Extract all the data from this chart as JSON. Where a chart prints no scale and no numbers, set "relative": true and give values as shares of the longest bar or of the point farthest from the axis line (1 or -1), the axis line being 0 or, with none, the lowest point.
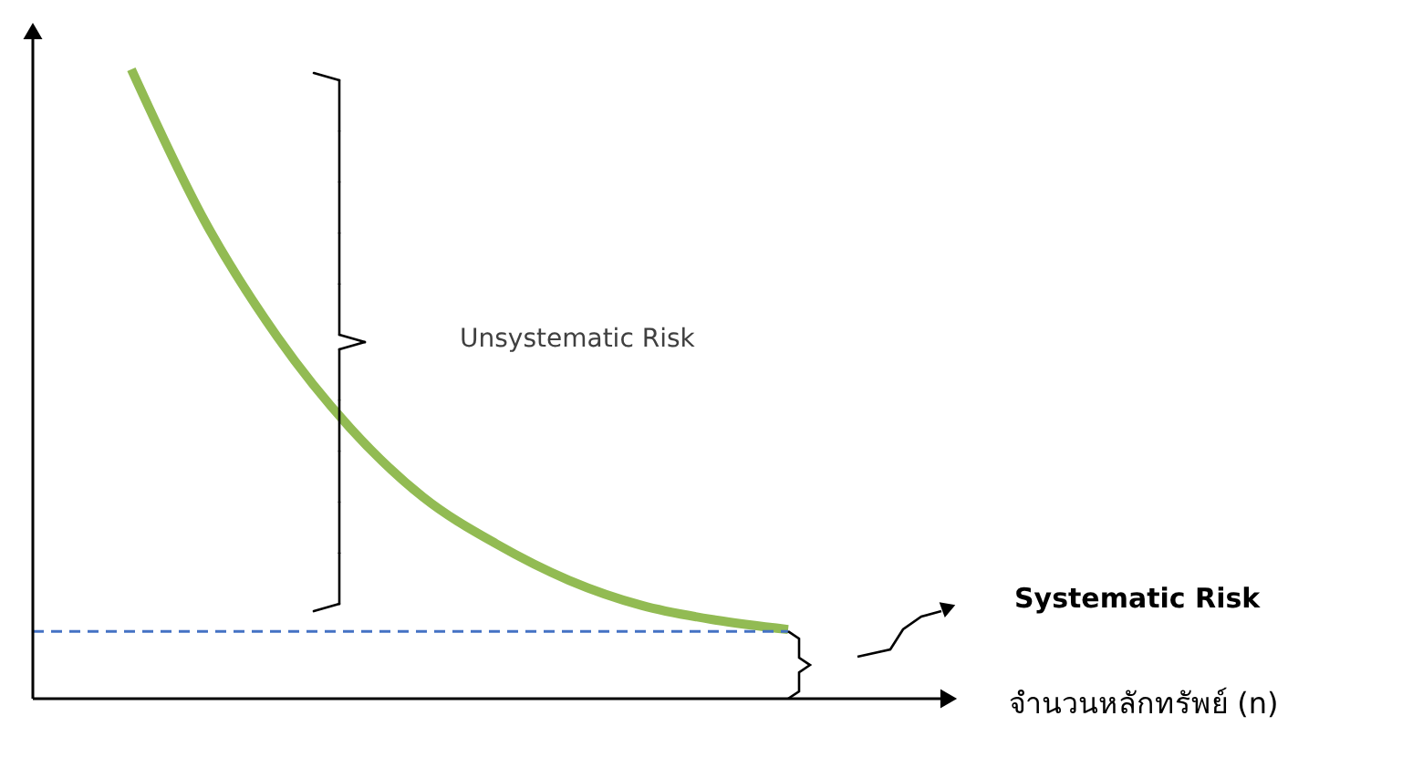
{
  "chart_data": {
    "type": "line",
    "relative": true,
    "categories": [
      null,
      null,
      null,
      null,
      null,
      null,
      null,
      null,
      null,
      null
    ],
    "series": [
      {
        "color": "#92bb53",
        "values": [
          1.0,
          0.76,
          0.575,
          0.43,
          0.32,
          0.246,
          0.188,
          0.148,
          0.125,
          0.11
        ]
      }
    ],
    "ref_lines": [
      {
        "axis": "y",
        "value": 0.107,
        "color": "#4472c4",
        "line_style": "dashed"
      }
    ],
    "annotations": [
      "Unsystematic Risk",
      "Systematic  Risk",
      "จำนวนหลักทรัพย์ (n)"
    ],
    "grid": false,
    "marker": "none",
    "line_style": "solid"
  }
}
